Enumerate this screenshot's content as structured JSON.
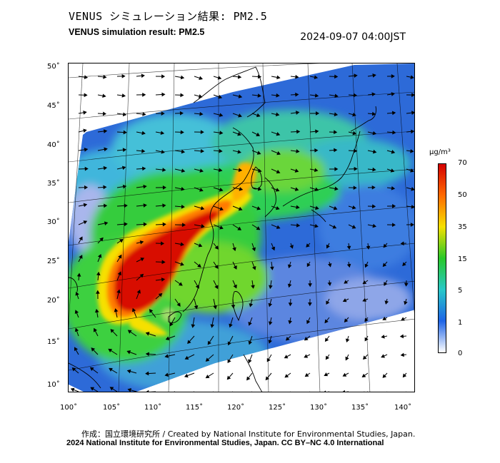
{
  "header": {
    "title_jp": "VENUS シミュレーション結果: PM2.5",
    "title_en": "VENUS simulation result: PM2.5",
    "datetime": "2024-09-07 04:00JST"
  },
  "map": {
    "lat_labels": [
      "50˚",
      "45˚",
      "40˚",
      "35˚",
      "30˚",
      "25˚",
      "20˚",
      "15˚",
      "10˚"
    ],
    "lon_labels": [
      "100˚",
      "105˚",
      "110˚",
      "115˚",
      "120˚",
      "125˚",
      "130˚",
      "135˚",
      "140˚"
    ],
    "lat_range": [
      9,
      51
    ],
    "lon_range": [
      100,
      142
    ],
    "field": "PM2.5 concentration with wind vectors",
    "feature": "typhoon circulation near 20N 112E"
  },
  "colorbar": {
    "unit": "µg/m³",
    "ticks": [
      "70",
      "50",
      "35",
      "15",
      "5",
      "1",
      "0"
    ],
    "colors": [
      "#d40000",
      "#ff6a00",
      "#f6e000",
      "#28c828",
      "#28c8c8",
      "#1e64e6",
      "#ffffff"
    ]
  },
  "credits": {
    "line1": "作成：国立環境研究所 / Created by National Institute for Environmental Studies, Japan.",
    "line2": "2024 National Institute for Environmental Studies, Japan. CC BY–NC 4.0 International"
  }
}
